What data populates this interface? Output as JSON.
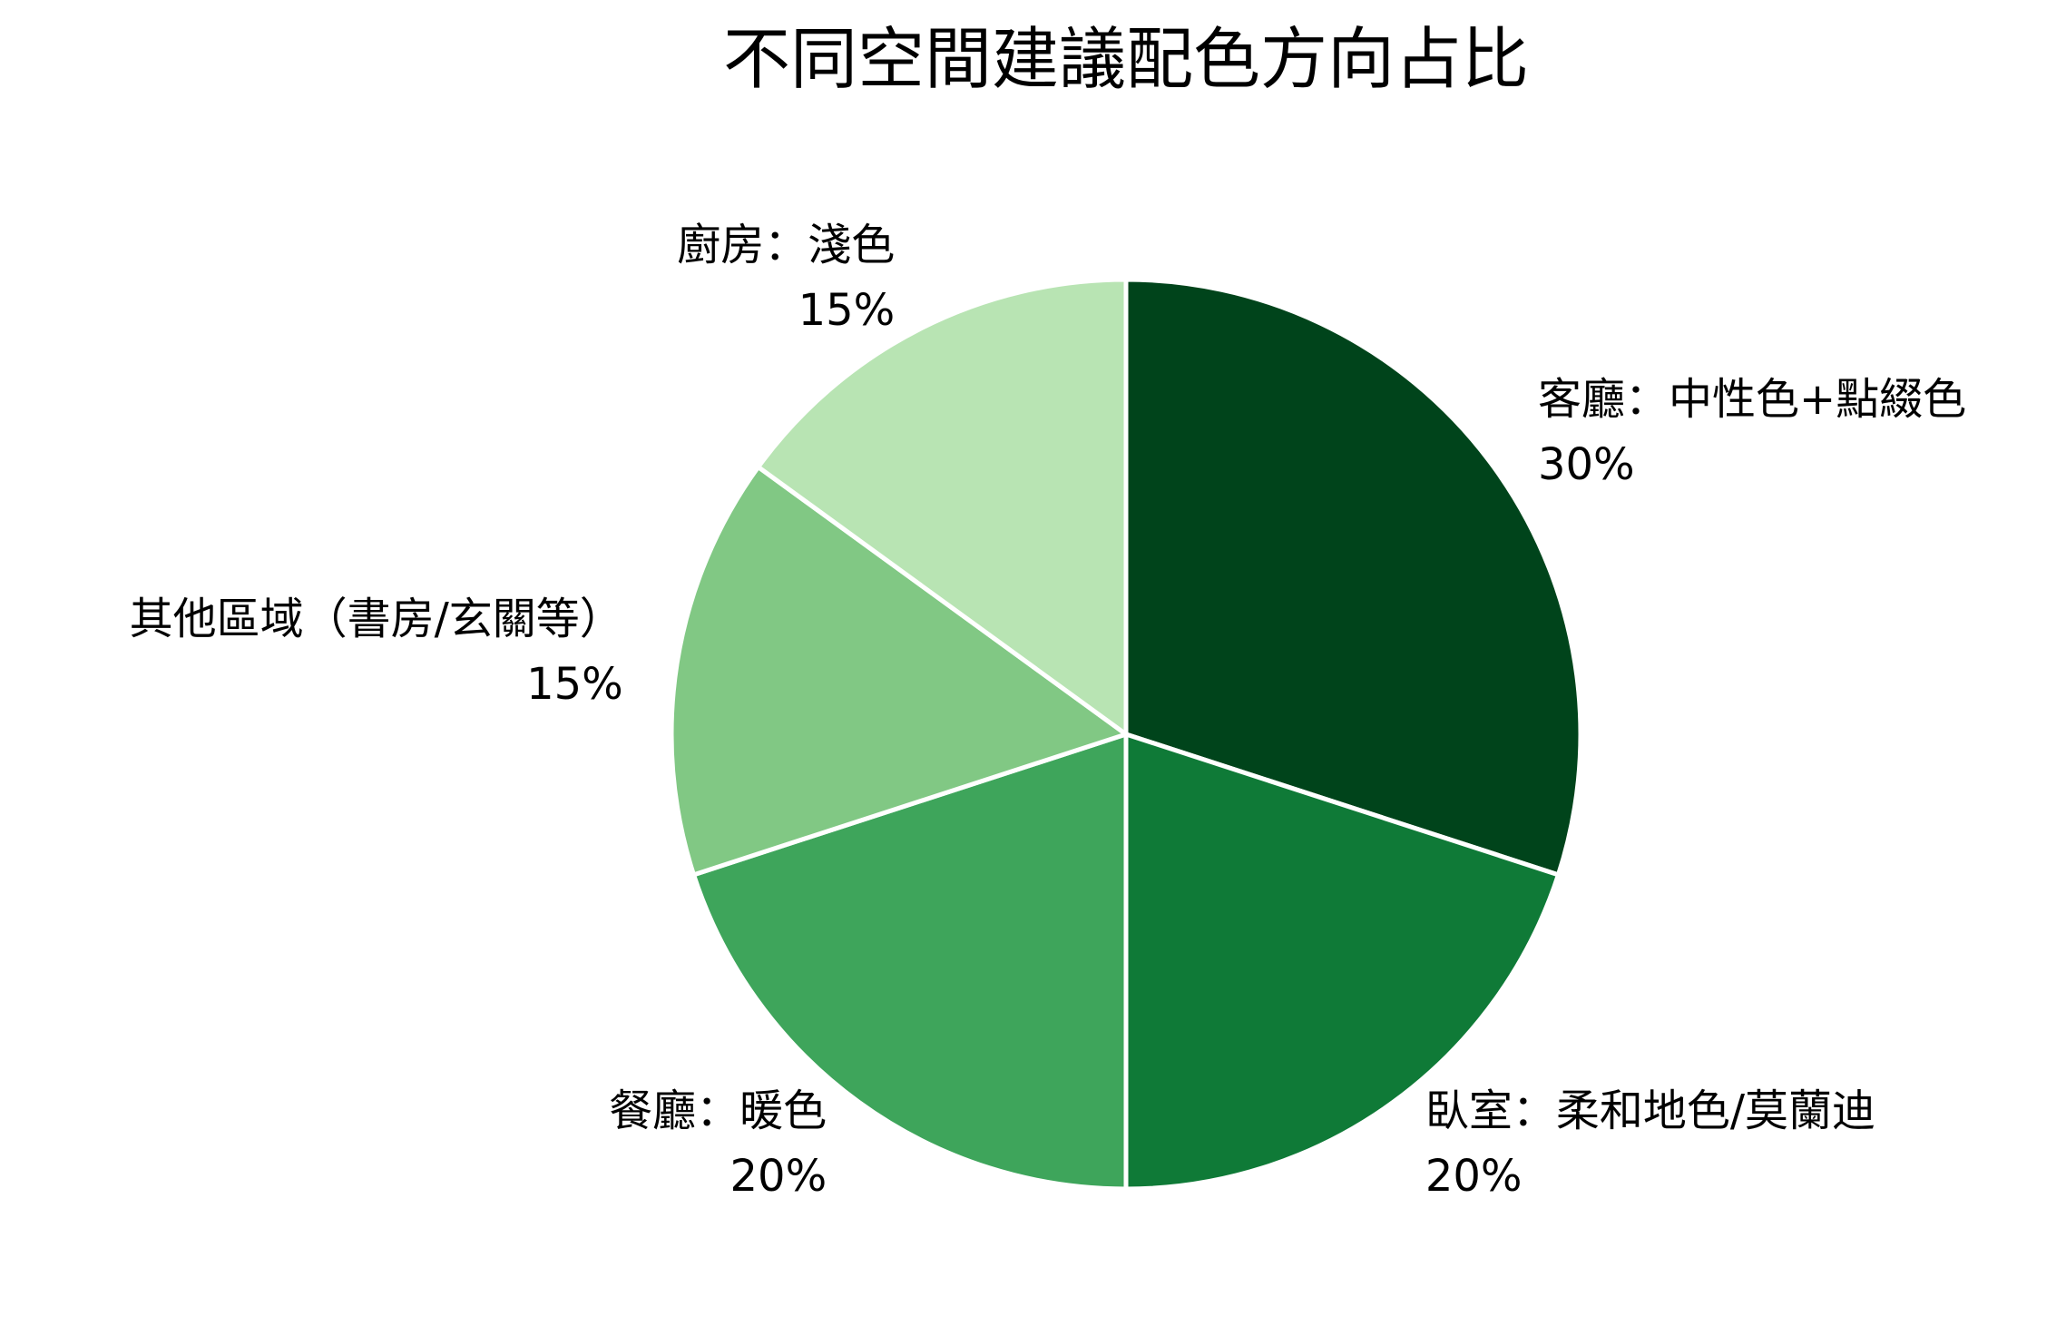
{
  "chart_data": {
    "type": "pie",
    "title": "不同空間建議配色方向占比",
    "categories": [
      "客廳：中性色+點綴色",
      "臥室：柔和地色/莫蘭迪",
      "餐廳：暖色",
      "其他區域（書房/玄關等）",
      "廚房：淺色"
    ],
    "values": [
      30,
      20,
      20,
      15,
      15
    ],
    "value_labels": [
      "30%",
      "20%",
      "20%",
      "15%",
      "15%"
    ],
    "colors": [
      "#00441b",
      "#0f7a37",
      "#3ea55b",
      "#81c884",
      "#b8e4b3"
    ]
  }
}
